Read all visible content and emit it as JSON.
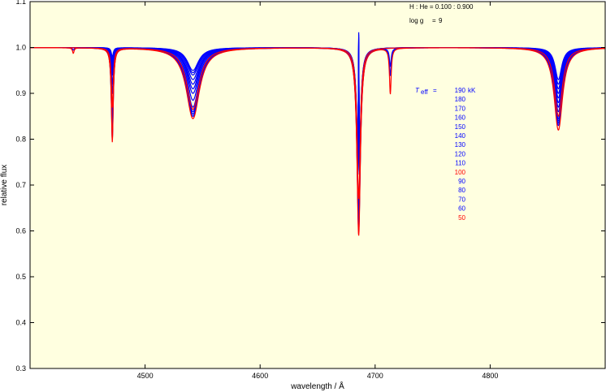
{
  "chart_data": {
    "type": "line",
    "xlabel": "wavelength / Å",
    "ylabel": "relative flux",
    "xlim": [
      4400,
      4900
    ],
    "ylim": [
      0.3,
      1.1
    ],
    "x_ticks": [
      4500,
      4600,
      4700,
      4800
    ],
    "y_ticks": [
      0.3,
      0.4,
      0.5,
      0.6,
      0.7,
      0.8,
      0.9,
      1.0,
      1.1
    ],
    "x_tick_labels": [
      "4500",
      "4600",
      "4700",
      "4800"
    ],
    "y_tick_labels": [
      "0.3",
      "0.4",
      "0.5",
      "0.6",
      "0.7",
      "0.8",
      "0.9",
      "1.0",
      "1.1"
    ],
    "grid": false,
    "background_color": "#ffffe0",
    "annotations": {
      "composition": "H : He = 0.100 : 0.900",
      "logg_label": "log g",
      "logg_eq": "=",
      "logg_value": "9"
    },
    "legend": {
      "title": "T",
      "title_sub": "eff",
      "title_eq": "=",
      "unit": "kK",
      "placement": "right-center",
      "entries": [
        {
          "label": "190",
          "color": "#0000ff"
        },
        {
          "label": "180",
          "color": "#0000ff"
        },
        {
          "label": "170",
          "color": "#0000ff"
        },
        {
          "label": "160",
          "color": "#0000ff"
        },
        {
          "label": "150",
          "color": "#0000ff"
        },
        {
          "label": "140",
          "color": "#0000ff"
        },
        {
          "label": "130",
          "color": "#0000ff"
        },
        {
          "label": "120",
          "color": "#0000ff"
        },
        {
          "label": "110",
          "color": "#0000ff"
        },
        {
          "label": "100",
          "color": "#ff0000"
        },
        {
          "label": "90",
          "color": "#0000ff"
        },
        {
          "label": "80",
          "color": "#0000ff"
        },
        {
          "label": "70",
          "color": "#0000ff"
        },
        {
          "label": "60",
          "color": "#0000ff"
        },
        {
          "label": "50",
          "color": "#ff0000"
        }
      ]
    },
    "continuum": 1.0,
    "series": [
      {
        "teff": 190,
        "color": "#0000ff",
        "lines": [
          {
            "center": 4471.5,
            "depth": 0.02,
            "width": 1.0
          },
          {
            "center": 4541.6,
            "depth": 0.05,
            "width": 6.0
          },
          {
            "center": 4685.7,
            "depth": 0.33,
            "width": 1.6,
            "emission": 0.045
          },
          {
            "center": 4859.3,
            "depth": 0.07,
            "width": 3.5
          }
        ]
      },
      {
        "teff": 180,
        "color": "#0000ff",
        "lines": [
          {
            "center": 4471.5,
            "depth": 0.025,
            "width": 1.0
          },
          {
            "center": 4541.6,
            "depth": 0.055,
            "width": 6.0
          },
          {
            "center": 4685.7,
            "depth": 0.34,
            "width": 1.6,
            "emission": 0.04
          },
          {
            "center": 4859.3,
            "depth": 0.08,
            "width": 3.6
          }
        ]
      },
      {
        "teff": 170,
        "color": "#0000ff",
        "lines": [
          {
            "center": 4471.5,
            "depth": 0.03,
            "width": 1.0
          },
          {
            "center": 4541.6,
            "depth": 0.06,
            "width": 6.1
          },
          {
            "center": 4685.7,
            "depth": 0.35,
            "width": 1.6,
            "emission": 0.035
          },
          {
            "center": 4859.3,
            "depth": 0.09,
            "width": 3.6
          }
        ]
      },
      {
        "teff": 160,
        "color": "#0000ff",
        "lines": [
          {
            "center": 4471.5,
            "depth": 0.035,
            "width": 1.0
          },
          {
            "center": 4541.6,
            "depth": 0.07,
            "width": 6.1
          },
          {
            "center": 4685.7,
            "depth": 0.36,
            "width": 1.6,
            "emission": 0.03
          },
          {
            "center": 4859.3,
            "depth": 0.1,
            "width": 3.7
          }
        ]
      },
      {
        "teff": 150,
        "color": "#0000ff",
        "lines": [
          {
            "center": 4471.5,
            "depth": 0.04,
            "width": 1.0
          },
          {
            "center": 4541.6,
            "depth": 0.08,
            "width": 6.2
          },
          {
            "center": 4685.7,
            "depth": 0.37,
            "width": 1.6,
            "emission": 0.025
          },
          {
            "center": 4859.3,
            "depth": 0.11,
            "width": 3.8
          }
        ]
      },
      {
        "teff": 140,
        "color": "#0000ff",
        "lines": [
          {
            "center": 4471.5,
            "depth": 0.05,
            "width": 1.0
          },
          {
            "center": 4541.6,
            "depth": 0.09,
            "width": 6.2
          },
          {
            "center": 4685.7,
            "depth": 0.37,
            "width": 1.6,
            "emission": 0.02
          },
          {
            "center": 4859.3,
            "depth": 0.12,
            "width": 3.8
          }
        ]
      },
      {
        "teff": 130,
        "color": "#0000ff",
        "lines": [
          {
            "center": 4471.5,
            "depth": 0.06,
            "width": 1.0
          },
          {
            "center": 4541.6,
            "depth": 0.1,
            "width": 6.3
          },
          {
            "center": 4685.7,
            "depth": 0.37,
            "width": 1.6,
            "emission": 0.015
          },
          {
            "center": 4859.3,
            "depth": 0.13,
            "width": 3.9
          }
        ]
      },
      {
        "teff": 120,
        "color": "#0000ff",
        "lines": [
          {
            "center": 4471.5,
            "depth": 0.08,
            "width": 1.0
          },
          {
            "center": 4541.6,
            "depth": 0.115,
            "width": 6.3
          },
          {
            "center": 4685.7,
            "depth": 0.37,
            "width": 1.6,
            "emission": 0.01
          },
          {
            "center": 4859.3,
            "depth": 0.14,
            "width": 4.0
          }
        ]
      },
      {
        "teff": 110,
        "color": "#0000ff",
        "lines": [
          {
            "center": 4471.5,
            "depth": 0.1,
            "width": 1.0
          },
          {
            "center": 4541.6,
            "depth": 0.13,
            "width": 6.4
          },
          {
            "center": 4685.7,
            "depth": 0.36,
            "width": 1.6
          },
          {
            "center": 4859.3,
            "depth": 0.15,
            "width": 4.0
          }
        ]
      },
      {
        "teff": 100,
        "color": "#ff0000",
        "lines": [
          {
            "center": 4471.5,
            "depth": 0.13,
            "width": 1.0
          },
          {
            "center": 4541.6,
            "depth": 0.135,
            "width": 6.5
          },
          {
            "center": 4685.7,
            "depth": 0.33,
            "width": 1.7
          },
          {
            "center": 4859.3,
            "depth": 0.15,
            "width": 4.1
          }
        ]
      },
      {
        "teff": 90,
        "color": "#0000ff",
        "lines": [
          {
            "center": 4471.5,
            "depth": 0.15,
            "width": 1.0
          },
          {
            "center": 4541.6,
            "depth": 0.14,
            "width": 6.5
          },
          {
            "center": 4685.7,
            "depth": 0.35,
            "width": 1.7
          },
          {
            "center": 4859.3,
            "depth": 0.155,
            "width": 4.2
          }
        ]
      },
      {
        "teff": 80,
        "color": "#0000ff",
        "lines": [
          {
            "center": 4471.5,
            "depth": 0.17,
            "width": 1.0
          },
          {
            "center": 4541.6,
            "depth": 0.145,
            "width": 6.6
          },
          {
            "center": 4685.7,
            "depth": 0.37,
            "width": 1.7
          },
          {
            "center": 4859.3,
            "depth": 0.16,
            "width": 4.3
          }
        ]
      },
      {
        "teff": 70,
        "color": "#0000ff",
        "lines": [
          {
            "center": 4471.5,
            "depth": 0.19,
            "width": 1.0
          },
          {
            "center": 4541.6,
            "depth": 0.15,
            "width": 6.7
          },
          {
            "center": 4685.7,
            "depth": 0.39,
            "width": 1.8
          },
          {
            "center": 4713.2,
            "depth": 0.04,
            "width": 0.9
          },
          {
            "center": 4859.3,
            "depth": 0.165,
            "width": 4.3
          }
        ]
      },
      {
        "teff": 60,
        "color": "#0000ff",
        "lines": [
          {
            "center": 4437.6,
            "depth": 0.005,
            "width": 0.8
          },
          {
            "center": 4471.5,
            "depth": 0.2,
            "width": 1.0
          },
          {
            "center": 4541.6,
            "depth": 0.15,
            "width": 6.8
          },
          {
            "center": 4685.7,
            "depth": 0.4,
            "width": 1.8
          },
          {
            "center": 4713.2,
            "depth": 0.06,
            "width": 0.9
          },
          {
            "center": 4859.3,
            "depth": 0.17,
            "width": 4.4
          }
        ]
      },
      {
        "teff": 50,
        "color": "#ff0000",
        "lines": [
          {
            "center": 4437.6,
            "depth": 0.012,
            "width": 0.8
          },
          {
            "center": 4471.5,
            "depth": 0.205,
            "width": 1.0
          },
          {
            "center": 4541.6,
            "depth": 0.155,
            "width": 7.0
          },
          {
            "center": 4685.7,
            "depth": 0.41,
            "width": 1.8
          },
          {
            "center": 4713.2,
            "depth": 0.1,
            "width": 0.9
          },
          {
            "center": 4859.3,
            "depth": 0.18,
            "width": 4.5
          }
        ]
      }
    ]
  }
}
